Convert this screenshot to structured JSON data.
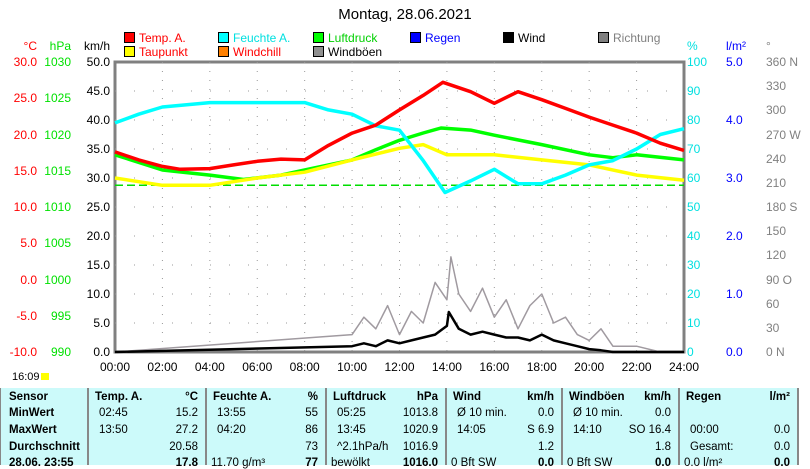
{
  "title": "Montag, 28.06.2021",
  "legend": [
    {
      "label": "Temp. A.",
      "color": "#ff0000",
      "text": "#ff0000"
    },
    {
      "label": "Taupunkt",
      "color": "#ffff00",
      "text": "#ff0000"
    },
    {
      "label": "Feuchte A.",
      "color": "#00ffff",
      "text": "#00e0e0"
    },
    {
      "label": "Windchill",
      "color": "#ff8000",
      "text": "#ff0000"
    },
    {
      "label": "Luftdruck",
      "color": "#00ff00",
      "text": "#00d000"
    },
    {
      "label": "Windböen",
      "color": "#909090",
      "text": "#000000"
    },
    {
      "label": "Regen",
      "color": "#0000ff",
      "text": "#0000ff"
    },
    {
      "label": "Wind",
      "color": "#000000",
      "text": "#000000"
    },
    {
      "label": "Richtung",
      "color": "#808080",
      "text": "#808080"
    }
  ],
  "axes": {
    "temp": {
      "unit": "°C",
      "ticks": [
        "30.0",
        "25.0",
        "20.0",
        "15.0",
        "10.0",
        "5.0",
        "0.0",
        "-5.0",
        "-10.0"
      ]
    },
    "pressure": {
      "unit": "hPa",
      "ticks": [
        "1030",
        "1025",
        "1020",
        "1015",
        "1010",
        "1005",
        "1000",
        "995",
        "990"
      ]
    },
    "wind": {
      "unit": "km/h",
      "ticks": [
        "50.0",
        "45.0",
        "40.0",
        "35.0",
        "30.0",
        "25.0",
        "20.0",
        "15.0",
        "10.0",
        "5.0",
        "0.0"
      ]
    },
    "humidity": {
      "unit": "%",
      "ticks": [
        "100",
        "90",
        "80",
        "70",
        "60",
        "50",
        "40",
        "30",
        "20",
        "10",
        "0"
      ]
    },
    "rain": {
      "unit": "l/m²",
      "ticks": [
        "5.0",
        "4.0",
        "3.0",
        "2.0",
        "1.0",
        "0.0"
      ]
    },
    "direction": {
      "unit": "°",
      "ticks": [
        "360 N",
        "330",
        "300",
        "270 W",
        "240",
        "210",
        "180 S",
        "150",
        "120",
        "90 O",
        "60",
        "30",
        "0 N"
      ]
    },
    "time": [
      "00:00",
      "02:00",
      "04:00",
      "06:00",
      "08:00",
      "10:00",
      "12:00",
      "14:00",
      "16:00",
      "18:00",
      "20:00",
      "22:00",
      "24:00"
    ]
  },
  "sun_time": "16:09",
  "chart_data": {
    "type": "line",
    "title": "Montag, 28.06.2021",
    "xlabel": "",
    "xlim": [
      0,
      24
    ],
    "series": [
      {
        "name": "Temp. A.",
        "axis": "temp",
        "ylim": [
          -10,
          30
        ],
        "color": "#ff0000",
        "x": [
          0,
          1,
          2,
          2.75,
          4,
          5,
          6,
          7,
          8,
          9,
          10,
          11,
          12,
          13,
          13.83,
          15,
          16,
          17,
          18,
          19,
          20,
          21,
          22,
          23,
          24
        ],
        "values": [
          17.6,
          16.5,
          15.6,
          15.2,
          15.3,
          15.8,
          16.3,
          16.6,
          16.5,
          18.5,
          20.2,
          21.3,
          23.4,
          25.4,
          27.2,
          25.9,
          24.3,
          25.9,
          24.8,
          23.6,
          22.4,
          21.3,
          20.2,
          18.8,
          17.8
        ]
      },
      {
        "name": "Taupunkt",
        "axis": "temp",
        "ylim": [
          -10,
          30
        ],
        "color": "#ffff00",
        "x": [
          0,
          2,
          4,
          6,
          8,
          10,
          12,
          13,
          14,
          16,
          18,
          20,
          22,
          24
        ],
        "values": [
          14.0,
          13.0,
          13.0,
          14.0,
          14.8,
          16.5,
          18.1,
          18.6,
          17.2,
          17.2,
          16.5,
          15.8,
          14.4,
          13.7
        ]
      },
      {
        "name": "Feuchte A.",
        "axis": "humidity",
        "ylim": [
          0,
          100
        ],
        "color": "#00ffff",
        "x": [
          0,
          1,
          2,
          4,
          6,
          8,
          9,
          10,
          11,
          12,
          13,
          13.92,
          15,
          16,
          17,
          18,
          19,
          20,
          21,
          22,
          23,
          24
        ],
        "values": [
          79,
          82,
          84.5,
          86,
          86,
          86,
          83.5,
          82,
          78,
          76.5,
          66,
          55,
          59,
          63,
          58,
          58,
          61,
          64.5,
          66,
          70,
          75,
          77
        ]
      },
      {
        "name": "Luftdruck",
        "axis": "pressure",
        "ylim": [
          990,
          1030
        ],
        "color": "#00ff00",
        "x": [
          0,
          2,
          4,
          5.42,
          7,
          8,
          10,
          11,
          12,
          13,
          13.75,
          15,
          16,
          18,
          20,
          21,
          22,
          24
        ],
        "values": [
          1017.2,
          1015.1,
          1014.4,
          1013.8,
          1014.4,
          1015.1,
          1016.5,
          1017.9,
          1019.2,
          1020.2,
          1020.9,
          1020.6,
          1019.9,
          1018.6,
          1017.2,
          1016.8,
          1017.2,
          1016.5
        ]
      },
      {
        "name": "Windböen",
        "axis": "wind",
        "ylim": [
          0,
          50
        ],
        "color": "#a09aa0",
        "x": [
          0,
          10,
          10.5,
          11,
          11.5,
          12,
          12.5,
          13,
          13.5,
          14,
          14.17,
          14.5,
          15,
          15.5,
          16,
          16.5,
          17,
          17.5,
          18,
          18.5,
          19,
          19.5,
          20,
          20.5,
          21,
          22,
          23,
          24
        ],
        "values": [
          0,
          3,
          6,
          4,
          8,
          3,
          7,
          5,
          12,
          9,
          16.4,
          10,
          7,
          11,
          6,
          9,
          4,
          8,
          10,
          5,
          6,
          3,
          2,
          4,
          1,
          1,
          0,
          0
        ]
      },
      {
        "name": "Wind",
        "axis": "wind",
        "ylim": [
          0,
          50
        ],
        "color": "#000000",
        "x": [
          0,
          10,
          10.5,
          11,
          11.5,
          12,
          12.5,
          13,
          13.5,
          14,
          14.08,
          14.5,
          15,
          15.5,
          16,
          16.5,
          17,
          17.5,
          18,
          18.5,
          19,
          19.5,
          20,
          20.5,
          21,
          22,
          23,
          24
        ],
        "values": [
          0,
          1,
          1.5,
          1,
          2,
          1.5,
          2,
          2.5,
          3,
          4.5,
          6.9,
          4,
          3,
          3.5,
          3,
          2.5,
          2.5,
          2,
          3,
          2,
          1.5,
          1,
          0.5,
          0.3,
          0,
          0,
          0,
          0
        ]
      }
    ],
    "reference_line": {
      "axis": "temp",
      "value": 13.0,
      "color": "#00dd00"
    }
  },
  "table": {
    "headers": [
      [
        "Sensor",
        ""
      ],
      [
        "Temp. A.",
        "°C"
      ],
      [
        "Feuchte A.",
        "%"
      ],
      [
        "Luftdruck",
        "hPa"
      ],
      [
        "Wind",
        "km/h"
      ],
      [
        "Windböen",
        "km/h"
      ],
      [
        "Regen",
        "l/m²"
      ]
    ],
    "rows": [
      [
        "MinWert",
        "02:45",
        "15.2",
        "13:55",
        "55",
        "05:25",
        "1013.8",
        "Ø 10 min.",
        "0.0",
        "Ø 10 min.",
        "0.0",
        "",
        ""
      ],
      [
        "MaxWert",
        "13:50",
        "27.2",
        "04:20",
        "86",
        "13:45",
        "1020.9",
        "14:05",
        "S 6.9",
        "14:10",
        "SO 16.4",
        "00:00",
        "0.0"
      ],
      [
        "Durchschnitt",
        "",
        "20.58",
        "",
        "73",
        "^2.1hPa/h",
        "1016.9",
        "",
        "1.2",
        "",
        "1.8",
        "Gesamt:",
        "0.0"
      ],
      [
        "28.06. 23:55",
        "",
        "17.8",
        "11.70 g/m³",
        "77",
        "bewölkt",
        "1016.0",
        "0 Bft SW",
        "0.0",
        "0 Bft SW",
        "0.0",
        "0.0 l/m²",
        "0.0"
      ]
    ]
  }
}
